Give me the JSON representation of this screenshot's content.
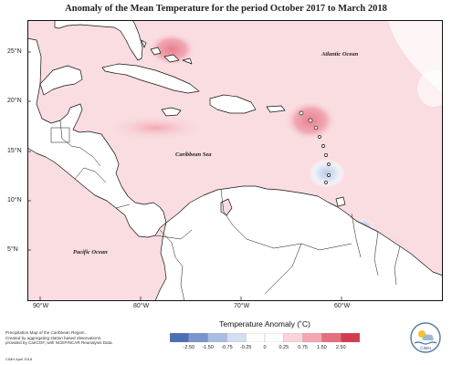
{
  "title": "Anomaly of the Mean Temperature for the period October 2017 to March 2018",
  "latitude_labels": [
    "25°N",
    "20°N",
    "15°N",
    "10°N",
    "5°N"
  ],
  "longitude_labels": [
    "90°W",
    "80°W",
    "70°W",
    "60°W"
  ],
  "ocean_labels": {
    "atlantic": "Atlantic Ocean",
    "caribbean": "Caribbean Sea",
    "pacific": "Pacific Ocean"
  },
  "legend": {
    "title": "Temperature Anomaly (˚C)",
    "ticks": [
      "-2.50",
      "-1.50",
      "-0.75",
      "-0.25",
      "0",
      "0.25",
      "0.75",
      "1.50",
      "2.50"
    ],
    "colors": [
      "#4a6fb5",
      "#7a95cf",
      "#a9bde2",
      "#d3def1",
      "#ffffff",
      "#ffffff",
      "#fbd4da",
      "#f4a7b2",
      "#e56f7f",
      "#d23c52"
    ]
  },
  "footer": {
    "line1": "Precipitation Map of the Caribbean Region.",
    "line2": "Created by aggregating station based observations,",
    "line3": "provided by CariCOF, with NCEP/NCAR Reanalysis Data.",
    "line4": "CIMH April 2018"
  },
  "logo": {
    "label": "CIMH"
  },
  "colors": {
    "base_anomaly": "#f9dde1",
    "warm_anomaly": "#f2a8b3",
    "strong_warm": "#e8808f",
    "cool_anomaly": "#c9d7ec",
    "land_outline": "#111111",
    "land_fill": "#ffffff"
  }
}
